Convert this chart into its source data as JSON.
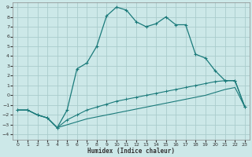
{
  "xlabel": "Humidex (Indice chaleur)",
  "bg_color": "#cce8e8",
  "grid_color": "#aacccc",
  "line_color": "#1a7a7a",
  "xlim": [
    -0.5,
    23.5
  ],
  "ylim": [
    -4.5,
    9.5
  ],
  "xticks": [
    0,
    1,
    2,
    3,
    4,
    5,
    6,
    7,
    8,
    9,
    10,
    11,
    12,
    13,
    14,
    15,
    16,
    17,
    18,
    19,
    20,
    21,
    22,
    23
  ],
  "yticks": [
    -4,
    -3,
    -2,
    -1,
    0,
    1,
    2,
    3,
    4,
    5,
    6,
    7,
    8,
    9
  ],
  "curve_main_x": [
    0,
    1,
    2,
    3,
    4,
    5,
    6,
    7,
    8,
    9,
    10,
    11,
    12,
    13,
    14,
    15,
    16,
    17,
    18,
    19,
    20,
    21,
    22,
    23
  ],
  "curve_main_y": [
    -1.5,
    -1.5,
    -2.0,
    -2.3,
    -3.3,
    -1.5,
    2.7,
    3.3,
    5.0,
    8.1,
    9.0,
    8.7,
    7.5,
    7.0,
    7.3,
    8.0,
    7.2,
    7.2,
    4.2,
    3.8,
    2.5,
    1.5,
    1.5,
    -1.2
  ],
  "curve_mid_x": [
    0,
    1,
    2,
    3,
    4,
    5,
    6,
    7,
    8,
    9,
    10,
    11,
    12,
    13,
    14,
    15,
    16,
    17,
    18,
    19,
    20,
    21,
    22,
    23
  ],
  "curve_mid_y": [
    -1.5,
    -1.5,
    -2.0,
    -2.3,
    -3.3,
    -2.5,
    -2.0,
    -1.5,
    -1.2,
    -0.9,
    -0.6,
    -0.4,
    -0.2,
    0.0,
    0.2,
    0.4,
    0.6,
    0.8,
    1.0,
    1.2,
    1.4,
    1.5,
    1.5,
    -1.2
  ],
  "curve_low_x": [
    0,
    1,
    2,
    3,
    4,
    5,
    6,
    7,
    8,
    9,
    10,
    11,
    12,
    13,
    14,
    15,
    16,
    17,
    18,
    19,
    20,
    21,
    22,
    23
  ],
  "curve_low_y": [
    -1.5,
    -1.5,
    -2.0,
    -2.3,
    -3.3,
    -3.0,
    -2.7,
    -2.4,
    -2.2,
    -2.0,
    -1.8,
    -1.6,
    -1.4,
    -1.2,
    -1.0,
    -0.8,
    -0.6,
    -0.4,
    -0.2,
    0.0,
    0.3,
    0.6,
    0.8,
    -1.2
  ]
}
